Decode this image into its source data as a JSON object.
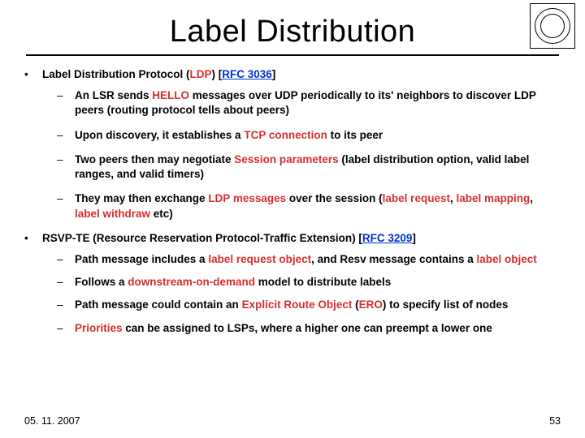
{
  "title": "Label Distribution",
  "footer": {
    "date": "05. 11. 2007",
    "page": "53"
  },
  "bullets": {
    "b1": {
      "prefix": "Label Distribution Protocol (",
      "ldp": "LDP",
      "mid": ") [",
      "rfc": "RFC 3036",
      "suffix": "]"
    },
    "b1s1": {
      "t1": "An LSR sends ",
      "hello": "HELLO",
      "t2": " messages over UDP periodically to its' neighbors to discover LDP peers (routing protocol tells about peers)"
    },
    "b1s2": {
      "t1": "Upon discovery, it establishes a ",
      "tcp": "TCP connection",
      "t2": " to its peer"
    },
    "b1s3": {
      "t1": "Two peers then may negotiate ",
      "sp": "Session parameters",
      "t2": " (label distribution option, valid label ranges, and valid timers)"
    },
    "b1s4": {
      "t1": "They may then exchange ",
      "lm": "LDP messages",
      "t2": " over the session (",
      "lr": "label request",
      "c1": ", ",
      "lmap": "label mapping",
      "c2": ", ",
      "lw": "label withdraw",
      "t3": " etc)"
    },
    "b2": {
      "t1": "RSVP-TE (Resource Reservation Protocol-Traffic Extension) [",
      "rfc": "RFC 3209",
      "t2": "]"
    },
    "b2s1": {
      "t1": "Path message includes a ",
      "lro": "label request object",
      "t2": ", and Resv message contains a ",
      "lo": "label object"
    },
    "b2s2": {
      "t1": "Follows a ",
      "dod": "downstream-on-demand",
      "t2": " model to distribute labels"
    },
    "b2s3": {
      "t1": "Path message could contain an ",
      "ero": "Explicit Route Object",
      "t2": " (",
      "eroa": "ERO",
      "t3": ") to specify list of nodes"
    },
    "b2s4": {
      "pri": "Priorities",
      "t1": " can be assigned to LSPs, where a higher one can preempt a lower one"
    }
  }
}
